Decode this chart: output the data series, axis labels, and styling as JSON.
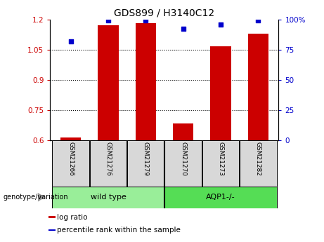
{
  "title": "GDS899 / H3140C12",
  "categories": [
    "GSM21266",
    "GSM21276",
    "GSM21279",
    "GSM21270",
    "GSM21273",
    "GSM21282"
  ],
  "log_ratio": [
    0.615,
    1.17,
    1.18,
    0.685,
    1.065,
    1.13
  ],
  "percentile_rank": [
    82,
    99,
    99,
    92,
    96,
    99
  ],
  "ylim_left": [
    0.6,
    1.2
  ],
  "ylim_right": [
    0,
    100
  ],
  "yticks_left": [
    0.6,
    0.75,
    0.9,
    1.05,
    1.2
  ],
  "yticks_right": [
    0,
    25,
    50,
    75,
    100
  ],
  "ytick_labels_left": [
    "0.6",
    "0.75",
    "0.9",
    "1.05",
    "1.2"
  ],
  "ytick_labels_right": [
    "0",
    "25",
    "50",
    "75",
    "100%"
  ],
  "hlines": [
    0.75,
    0.9,
    1.05
  ],
  "bar_color": "#cc0000",
  "dot_color": "#0000cc",
  "bar_width": 0.55,
  "groups": [
    {
      "label": "wild type",
      "indices": [
        0,
        1,
        2
      ],
      "color": "#99ee99"
    },
    {
      "label": "AQP1-/-",
      "indices": [
        3,
        4,
        5
      ],
      "color": "#55dd55"
    }
  ],
  "group_label": "genotype/variation",
  "legend_items": [
    {
      "label": "log ratio",
      "color": "#cc0000"
    },
    {
      "label": "percentile rank within the sample",
      "color": "#0000cc"
    }
  ],
  "left_tick_color": "#cc0000",
  "right_tick_color": "#0000cc",
  "bg_color": "#d8d8d8"
}
